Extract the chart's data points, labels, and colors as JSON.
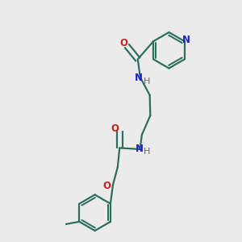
{
  "bg_color": "#ebebeb",
  "bond_color": "#2d6e5e",
  "N_color": "#2020cc",
  "O_color": "#cc2020",
  "lw": 1.6,
  "figsize": [
    3.0,
    3.0
  ],
  "dpi": 100,
  "xlim": [
    0,
    1
  ],
  "ylim": [
    0,
    1
  ]
}
